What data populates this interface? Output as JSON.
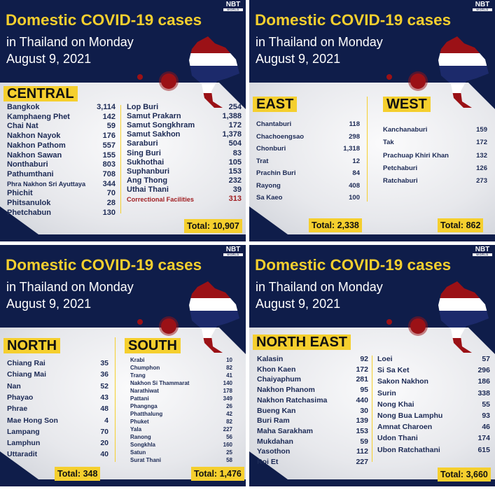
{
  "colors": {
    "navy": "#0f1d4a",
    "yellow": "#f5cf2e",
    "text": "#1c2a55",
    "highlight_red": "#a01e22"
  },
  "logo": {
    "text": "NBT",
    "sub": "WORLD"
  },
  "panels": [
    {
      "title": "Domestic COVID-19 cases",
      "subtitle1": "in Thailand on Monday",
      "subtitle2": "August 9, 2021",
      "regions": [
        {
          "name": "CENTRAL",
          "total": "Total: 10,907",
          "columns": [
            [
              {
                "province": "Bangkok",
                "cases": "3,114"
              },
              {
                "province": "Kamphaeng Phet",
                "cases": "142"
              },
              {
                "province": "Chai Nat",
                "cases": "59"
              },
              {
                "province": "Nakhon Nayok",
                "cases": "176"
              },
              {
                "province": "Nakhon Pathom",
                "cases": "557"
              },
              {
                "province": "Nakhon Sawan",
                "cases": "155"
              },
              {
                "province": "Nonthaburi",
                "cases": "803"
              },
              {
                "province": "Pathumthani",
                "cases": "708"
              },
              {
                "province": "Phra Nakhon Sri Ayuttaya",
                "cases": "344"
              },
              {
                "province": "Phichit",
                "cases": "70"
              },
              {
                "province": "Phitsanulok",
                "cases": "28"
              },
              {
                "province": "Phetchabun",
                "cases": "130"
              }
            ],
            [
              {
                "province": "Lop Buri",
                "cases": "254"
              },
              {
                "province": "Samut Prakarn",
                "cases": "1,388"
              },
              {
                "province": "Samut Songkhram",
                "cases": "172"
              },
              {
                "province": "Samut Sakhon",
                "cases": "1,378"
              },
              {
                "province": "Saraburi",
                "cases": "504"
              },
              {
                "province": "Sing Buri",
                "cases": "83"
              },
              {
                "province": "Sukhothai",
                "cases": "105"
              },
              {
                "province": "Suphanburi",
                "cases": "153"
              },
              {
                "province": "Ang Thong",
                "cases": "232"
              },
              {
                "province": "Uthai Thani",
                "cases": "39"
              },
              {
                "province": "Correctional Facilities",
                "cases": "313",
                "highlight": true
              }
            ]
          ]
        }
      ]
    },
    {
      "title": "Domestic COVID-19 cases",
      "subtitle1": "in Thailand on Monday",
      "subtitle2": "August 9, 2021",
      "regions": [
        {
          "name": "EAST",
          "total": "Total: 2,338",
          "columns": [
            [
              {
                "province": "Chantaburi",
                "cases": "118"
              },
              {
                "province": "Chachoengsao",
                "cases": "298"
              },
              {
                "province": "Chonburi",
                "cases": "1,318"
              },
              {
                "province": "Trat",
                "cases": "12"
              },
              {
                "province": "Prachin Buri",
                "cases": "84"
              },
              {
                "province": "Rayong",
                "cases": "408"
              },
              {
                "province": "Sa Kaeo",
                "cases": "100"
              }
            ]
          ]
        },
        {
          "name": "WEST",
          "total": "Total: 862",
          "columns": [
            [
              {
                "province": "Kanchanaburi",
                "cases": "159"
              },
              {
                "province": "Tak",
                "cases": "172"
              },
              {
                "province": "Prachuap Khiri Khan",
                "cases": "132"
              },
              {
                "province": "Petchaburi",
                "cases": "126"
              },
              {
                "province": "Ratchaburi",
                "cases": "273"
              }
            ]
          ]
        }
      ]
    },
    {
      "title": "Domestic COVID-19 cases",
      "subtitle1": "in Thailand on Monday",
      "subtitle2": "August 9, 2021",
      "regions": [
        {
          "name": "NORTH",
          "total": "Total: 348",
          "columns": [
            [
              {
                "province": "Chiang Rai",
                "cases": "35"
              },
              {
                "province": "Chiang Mai",
                "cases": "36"
              },
              {
                "province": "Nan",
                "cases": "52"
              },
              {
                "province": "Phayao",
                "cases": "43"
              },
              {
                "province": "Phrae",
                "cases": "48"
              },
              {
                "province": "Mae Hong Son",
                "cases": "4"
              },
              {
                "province": "Lampang",
                "cases": "70"
              },
              {
                "province": "Lamphun",
                "cases": "20"
              },
              {
                "province": "Uttaradit",
                "cases": "40"
              }
            ]
          ]
        },
        {
          "name": "SOUTH",
          "total": "Total: 1,476",
          "columns": [
            [
              {
                "province": "Krabi",
                "cases": "10"
              },
              {
                "province": "Chumphon",
                "cases": "82"
              },
              {
                "province": "Trang",
                "cases": "41"
              },
              {
                "province": "Nakhon Si Thammarat",
                "cases": "140"
              },
              {
                "province": "Narathiwat",
                "cases": "178"
              },
              {
                "province": "Pattani",
                "cases": "349"
              },
              {
                "province": "Phangnga",
                "cases": "26"
              },
              {
                "province": "Phatthalung",
                "cases": "42"
              },
              {
                "province": "Phuket",
                "cases": "82"
              },
              {
                "province": "Yala",
                "cases": "227"
              },
              {
                "province": "Ranong",
                "cases": "56"
              },
              {
                "province": "Songkhla",
                "cases": "160"
              },
              {
                "province": "Satun",
                "cases": "25"
              },
              {
                "province": "Surat Thani",
                "cases": "58"
              }
            ]
          ]
        }
      ]
    },
    {
      "title": "Domestic COVID-19 cases",
      "subtitle1": "in Thailand on Monday",
      "subtitle2": "August 9, 2021",
      "regions": [
        {
          "name": "NORTH EAST",
          "total": "Total: 3,660",
          "columns": [
            [
              {
                "province": "Kalasin",
                "cases": "92"
              },
              {
                "province": "Khon Kaen",
                "cases": "172"
              },
              {
                "province": "Chaiyaphum",
                "cases": "281"
              },
              {
                "province": "Nakhon Phanom",
                "cases": "95"
              },
              {
                "province": "Nakhon Ratchasima",
                "cases": "440"
              },
              {
                "province": "Bueng Kan",
                "cases": "30"
              },
              {
                "province": "Buri Ram",
                "cases": "139"
              },
              {
                "province": "Maha Sarakham",
                "cases": "153"
              },
              {
                "province": "Mukdahan",
                "cases": "59"
              },
              {
                "province": "Yasothon",
                "cases": "112"
              },
              {
                "province": "Roi Et",
                "cases": "227"
              }
            ],
            [
              {
                "province": "Loei",
                "cases": "57"
              },
              {
                "province": "Si Sa Ket",
                "cases": "296"
              },
              {
                "province": "Sakon Nakhon",
                "cases": "186"
              },
              {
                "province": "Surin",
                "cases": "338"
              },
              {
                "province": "Nong Khai",
                "cases": "55"
              },
              {
                "province": "Nong Bua Lamphu",
                "cases": "93"
              },
              {
                "province": "Amnat Charoen",
                "cases": "46"
              },
              {
                "province": "Udon Thani",
                "cases": "174"
              },
              {
                "province": "Ubon Ratchathani",
                "cases": "615"
              }
            ]
          ]
        }
      ]
    }
  ]
}
